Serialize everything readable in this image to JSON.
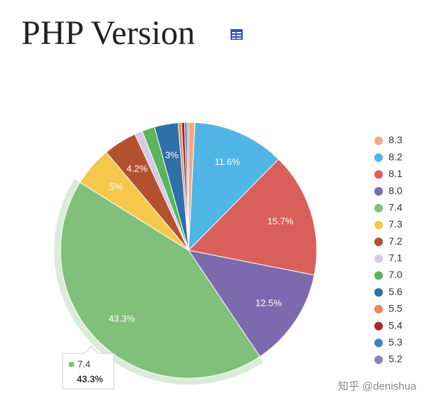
{
  "chart_data": {
    "type": "pie",
    "title": "PHP Version",
    "categories": [
      "8.3",
      "8.2",
      "8.1",
      "8.0",
      "7.4",
      "7.3",
      "7.2",
      "7.1",
      "7.0",
      "5.6",
      "5.5",
      "5.4",
      "5.3",
      "5.2"
    ],
    "values": [
      0.8,
      11.6,
      15.7,
      12.5,
      43.3,
      5,
      4.2,
      1.0,
      1.6,
      3,
      0.4,
      0.4,
      0.3,
      0.2
    ],
    "value_labels": [
      null,
      "11.6%",
      "15.7%",
      "12.5%",
      "43.3%",
      "5%",
      "4.2%",
      null,
      null,
      "3%",
      null,
      null,
      null,
      null
    ],
    "colors": [
      "#f0a882",
      "#4fb4e6",
      "#d9605a",
      "#7d6aae",
      "#80c07a",
      "#f5c84c",
      "#b5502e",
      "#d4c9e6",
      "#5bb55a",
      "#2e70a8",
      "#e8875a",
      "#a02a2a",
      "#3a86bf",
      "#8f7fbf"
    ],
    "legend": "right",
    "highlight": 4
  },
  "watermark": "知乎 @denishua"
}
